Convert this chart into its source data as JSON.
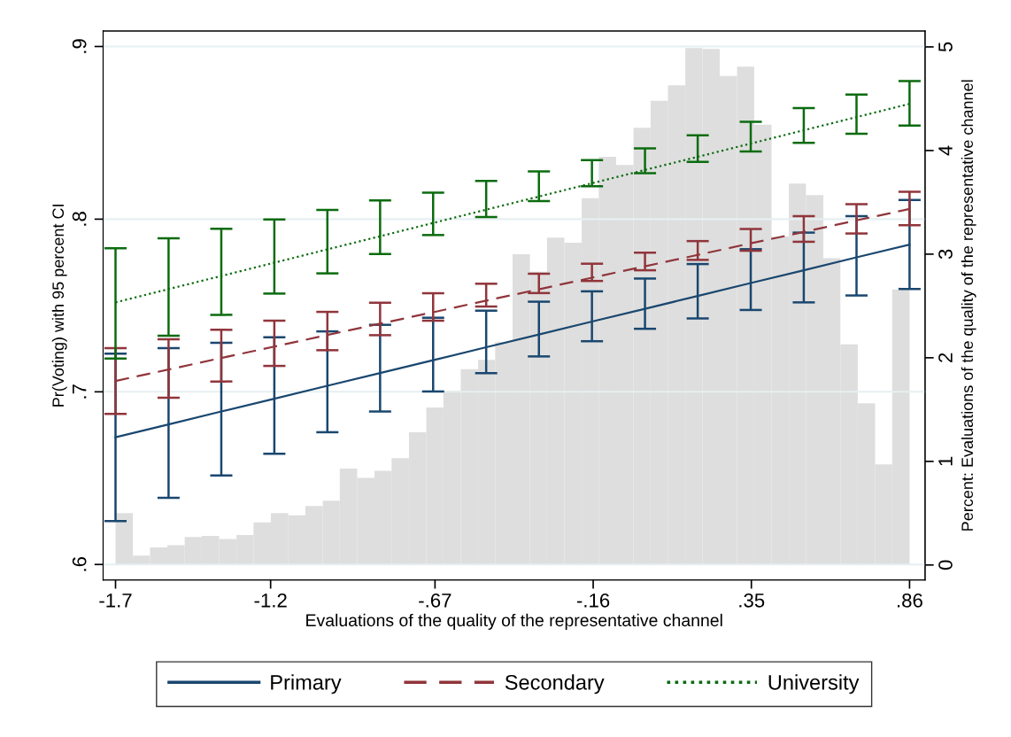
{
  "chart_data": {
    "type": "line",
    "xlabel": "Evaluations of the quality of the representative channel",
    "ylabel": "Pr(Voting) with 95 percent CI",
    "y2label": "Percent: Evaluations of the quality of the representative channel",
    "x": [
      -1.7,
      -1.529,
      -1.359,
      -1.188,
      -1.017,
      -0.847,
      -0.676,
      -0.505,
      -0.335,
      -0.164,
      0.007,
      0.177,
      0.348,
      0.519,
      0.689,
      0.86
    ],
    "xlim": [
      -1.74,
      0.91
    ],
    "xticks": [
      {
        "value": -1.7,
        "label": "-1.7"
      },
      {
        "value": -1.2,
        "label": "-1.2"
      },
      {
        "value": -0.67,
        "label": "-.67"
      },
      {
        "value": -0.16,
        "label": "-.16"
      },
      {
        "value": 0.35,
        "label": ".35"
      },
      {
        "value": 0.86,
        "label": ".86"
      }
    ],
    "ylim": [
      0.591,
      0.909
    ],
    "yticks": [
      {
        "value": 0.6,
        "label": ".6"
      },
      {
        "value": 0.7,
        "label": ".7"
      },
      {
        "value": 0.8,
        "label": ".8"
      },
      {
        "value": 0.9,
        "label": ".9"
      }
    ],
    "y2lim": [
      -0.145,
      5.154
    ],
    "y2ticks": [
      0,
      1,
      2,
      3,
      4,
      5
    ],
    "grid": "y",
    "legend": "bottom",
    "marker": "none",
    "series": [
      {
        "type": "histogram",
        "axis": "y2",
        "color": "#dedede",
        "bins": [
          -1.7,
          -1.644,
          -1.589,
          -1.533,
          -1.477,
          -1.422,
          -1.366,
          -1.31,
          -1.255,
          -1.199,
          -1.143,
          -1.088,
          -1.032,
          -0.977,
          -0.921,
          -0.865,
          -0.81,
          -0.754,
          -0.698,
          -0.643,
          -0.587,
          -0.531,
          -0.476,
          -0.42,
          -0.364,
          -0.309,
          -0.253,
          -0.197,
          -0.142,
          -0.086,
          -0.03,
          0.025,
          0.081,
          0.137,
          0.192,
          0.248,
          0.304,
          0.359,
          0.415,
          0.471,
          0.526,
          0.582,
          0.637,
          0.693,
          0.749,
          0.804,
          0.86
        ],
        "values": [
          0.5,
          0.09,
          0.17,
          0.19,
          0.27,
          0.28,
          0.25,
          0.29,
          0.41,
          0.5,
          0.48,
          0.57,
          0.62,
          0.93,
          0.84,
          0.91,
          1.03,
          1.28,
          1.52,
          1.68,
          1.89,
          1.98,
          2.15,
          3.0,
          2.83,
          3.16,
          3.11,
          3.54,
          3.94,
          3.86,
          4.22,
          4.48,
          4.63,
          4.99,
          4.98,
          4.72,
          4.81,
          4.25,
          3.17,
          3.68,
          3.57,
          2.96,
          2.13,
          1.56,
          0.97,
          2.66
        ]
      },
      {
        "name": "Primary",
        "color": "#1a476f",
        "line_style": "solid",
        "values": [
          0.6737,
          0.6811,
          0.6886,
          0.696,
          0.7035,
          0.7109,
          0.7183,
          0.7258,
          0.7332,
          0.7407,
          0.7481,
          0.7555,
          0.763,
          0.7704,
          0.7779,
          0.7853
        ],
        "errors": [
          [
            0.6251,
            0.7221
          ],
          [
            0.6386,
            0.7253
          ],
          [
            0.6516,
            0.7284
          ],
          [
            0.6641,
            0.7316
          ],
          [
            0.6766,
            0.735
          ],
          [
            0.6886,
            0.7388
          ],
          [
            0.7002,
            0.7429
          ],
          [
            0.7108,
            0.747
          ],
          [
            0.7205,
            0.7522
          ],
          [
            0.7293,
            0.7582
          ],
          [
            0.7365,
            0.7656
          ],
          [
            0.7425,
            0.774
          ],
          [
            0.7474,
            0.7826
          ],
          [
            0.7518,
            0.7922
          ],
          [
            0.7558,
            0.8017
          ],
          [
            0.7596,
            0.8111
          ]
        ]
      },
      {
        "name": "Secondary",
        "color": "#90353b",
        "line_style": "dashed",
        "values": [
          0.7063,
          0.7129,
          0.7196,
          0.7262,
          0.7329,
          0.7395,
          0.7461,
          0.7528,
          0.7594,
          0.7661,
          0.7727,
          0.7793,
          0.786,
          0.7926,
          0.7993,
          0.8059
        ],
        "errors": [
          [
            0.6872,
            0.7253
          ],
          [
            0.6966,
            0.7304
          ],
          [
            0.706,
            0.7359
          ],
          [
            0.715,
            0.7412
          ],
          [
            0.7241,
            0.7463
          ],
          [
            0.7328,
            0.7516
          ],
          [
            0.7412,
            0.7571
          ],
          [
            0.7494,
            0.7626
          ],
          [
            0.7572,
            0.7684
          ],
          [
            0.7642,
            0.7742
          ],
          [
            0.7704,
            0.7806
          ],
          [
            0.7764,
            0.7873
          ],
          [
            0.7817,
            0.7943
          ],
          [
            0.7869,
            0.8017
          ],
          [
            0.7917,
            0.8087
          ],
          [
            0.7965,
            0.8158
          ]
        ]
      },
      {
        "name": "University",
        "color": "#0b6b0f",
        "line_style": "dotted",
        "values": [
          0.7518,
          0.7595,
          0.7671,
          0.7748,
          0.7825,
          0.7901,
          0.7978,
          0.8055,
          0.8131,
          0.8208,
          0.8285,
          0.8361,
          0.8438,
          0.8515,
          0.8591,
          0.8668
        ],
        "errors": [
          [
            0.7193,
            0.7832
          ],
          [
            0.7325,
            0.7889
          ],
          [
            0.7446,
            0.7944
          ],
          [
            0.7569,
            0.7998
          ],
          [
            0.7686,
            0.8053
          ],
          [
            0.7798,
            0.8108
          ],
          [
            0.7908,
            0.8154
          ],
          [
            0.8012,
            0.8221
          ],
          [
            0.8105,
            0.8276
          ],
          [
            0.8191,
            0.8342
          ],
          [
            0.8266,
            0.841
          ],
          [
            0.8332,
            0.8486
          ],
          [
            0.8392,
            0.8564
          ],
          [
            0.8442,
            0.8644
          ],
          [
            0.8494,
            0.8722
          ],
          [
            0.8542,
            0.88
          ]
        ]
      }
    ]
  }
}
